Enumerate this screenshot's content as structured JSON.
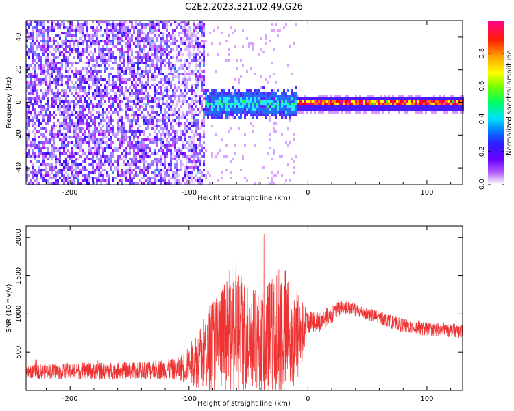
{
  "figure_title": "C2E2.2023.321.02.49.G26",
  "chart_data": [
    {
      "type": "heatmap",
      "xlabel": "Height of straight line (km)",
      "ylabel": "Frequency (Hz)",
      "xlim": [
        -237,
        130
      ],
      "ylim": [
        -50,
        50
      ],
      "xticks": [
        -200,
        -100,
        0,
        100
      ],
      "xtick_labels": [
        "-200",
        "-100",
        "0",
        "100"
      ],
      "yticks": [
        -40,
        -20,
        0,
        20,
        40
      ],
      "ytick_labels": [
        "-40",
        "-20",
        "0",
        "20",
        "40"
      ],
      "colorbar": {
        "label": "Normalized spectral amplitude",
        "range": [
          0,
          1
        ],
        "ticks": [
          0.0,
          0.2,
          0.4,
          0.6,
          0.8
        ],
        "tick_labels": [
          "0.0",
          "0.2",
          "0.4",
          "0.6",
          "0.8"
        ],
        "colormap": [
          "#ffffff",
          "#9a00ff",
          "#3a00ff",
          "#0050ff",
          "#00e5ff",
          "#00ff40",
          "#ffff00",
          "#ff8000",
          "#ff0000",
          "#ff0088"
        ]
      },
      "description_regions": [
        {
          "x_range": [
            -237,
            -88
          ],
          "freq_range": [
            -50,
            50
          ],
          "pattern": "broadband noise",
          "amplitude": 0.1
        },
        {
          "x_range": [
            -88,
            -10
          ],
          "freq_range": [
            -8,
            8
          ],
          "pattern": "scintillating signal",
          "amplitude": 0.5
        },
        {
          "x_range": [
            -10,
            130
          ],
          "freq_range": [
            -2,
            2
          ],
          "pattern": "stable carrier",
          "amplitude": 0.9
        }
      ]
    },
    {
      "type": "line",
      "xlabel": "Height of straight line (km)",
      "ylabel": "SNR (10 * v/v)",
      "xlim": [
        -237,
        130
      ],
      "ylim": [
        0,
        2150
      ],
      "xticks": [
        -200,
        -100,
        0,
        100
      ],
      "xtick_labels": [
        "-200",
        "-100",
        "0",
        "100"
      ],
      "yticks": [
        500,
        1000,
        1500,
        2000
      ],
      "ytick_labels": [
        "500",
        "1000",
        "1500",
        "2000"
      ],
      "color": "#ee3333",
      "envelope": {
        "x": [
          -237,
          -200,
          -150,
          -110,
          -100,
          -90,
          -80,
          -70,
          -60,
          -55,
          -50,
          -40,
          -30,
          -22,
          -18,
          -10,
          -5,
          0,
          10,
          20,
          30,
          40,
          60,
          80,
          100,
          130
        ],
        "mean": [
          250,
          250,
          260,
          280,
          330,
          450,
          600,
          700,
          800,
          750,
          700,
          650,
          700,
          800,
          750,
          700,
          750,
          900,
          900,
          1000,
          1100,
          1050,
          950,
          850,
          800,
          780
        ],
        "spread": [
          90,
          110,
          120,
          140,
          250,
          450,
          650,
          750,
          900,
          800,
          700,
          650,
          800,
          900,
          850,
          700,
          450,
          150,
          140,
          120,
          90,
          90,
          90,
          90,
          90,
          90
        ]
      }
    }
  ]
}
